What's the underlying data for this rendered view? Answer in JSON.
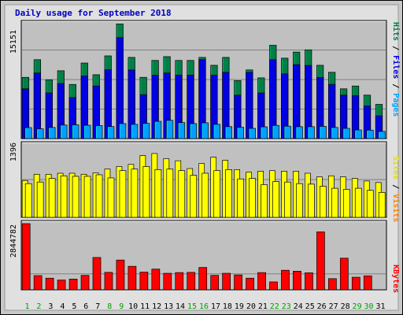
{
  "chart_data": [
    {
      "type": "bar",
      "title": "Daily usage for September 2018",
      "ylabel_top": "15151",
      "categories": [
        "1",
        "2",
        "3",
        "4",
        "5",
        "6",
        "7",
        "8",
        "9",
        "10",
        "11",
        "12",
        "13",
        "14",
        "15",
        "16",
        "17",
        "18",
        "19",
        "20",
        "21",
        "22",
        "23",
        "24",
        "25",
        "26",
        "27",
        "28",
        "29",
        "30",
        "31"
      ],
      "weekend_categories": [
        "1",
        "2",
        "8",
        "9",
        "15",
        "16",
        "22",
        "23",
        "29",
        "30"
      ],
      "legend": [
        "Pages",
        "Files",
        "Hits"
      ],
      "ylim": [
        0,
        15151
      ],
      "series": [
        {
          "name": "Hits",
          "color": "#007f46",
          "values": [
            8070,
            10400,
            7730,
            8940,
            7140,
            9960,
            8420,
            10900,
            15100,
            10700,
            8070,
            10300,
            10800,
            10300,
            10300,
            10700,
            9660,
            10700,
            7640,
            9050,
            8000,
            12300,
            10600,
            11400,
            11700,
            9660,
            8740,
            6560,
            6930,
            5730,
            4510
          ]
        },
        {
          "name": "Files",
          "color": "#0000e0",
          "values": [
            6560,
            8640,
            6020,
            7250,
            5400,
            8240,
            6930,
            9070,
            13300,
            9040,
            5790,
            8340,
            8640,
            8370,
            8370,
            10400,
            8340,
            8730,
            5720,
            8730,
            6020,
            10400,
            8530,
            9740,
            9640,
            8050,
            7140,
            5720,
            5640,
            4300,
            3000
          ]
        },
        {
          "name": "Pages",
          "color": "#00a0ff",
          "values": [
            1450,
            1290,
            1470,
            1790,
            1820,
            1760,
            1720,
            1590,
            1980,
            1880,
            2010,
            2280,
            2410,
            2110,
            1980,
            2080,
            1880,
            1580,
            1490,
            1350,
            1550,
            1740,
            1640,
            1570,
            1570,
            1620,
            1470,
            1350,
            1140,
            1120,
            950
          ]
        }
      ]
    },
    {
      "type": "bar",
      "ylabel_top": "1396",
      "legend": [
        "Sites",
        "Visits"
      ],
      "ylim": [
        0,
        1396
      ],
      "series": [
        {
          "name": "Visits",
          "color": "#ff8000",
          "values": [
            710,
            830,
            830,
            850,
            850,
            830,
            855,
            930,
            980,
            1020,
            1190,
            1230,
            1130,
            1090,
            940,
            1040,
            1160,
            1100,
            920,
            870,
            890,
            900,
            890,
            890,
            850,
            780,
            800,
            780,
            750,
            700,
            670
          ]
        },
        {
          "name": "Sites",
          "color": "#ffff00",
          "values": [
            650,
            680,
            750,
            800,
            790,
            790,
            820,
            760,
            900,
            930,
            980,
            920,
            930,
            900,
            810,
            850,
            900,
            920,
            740,
            750,
            630,
            690,
            680,
            650,
            640,
            600,
            560,
            540,
            560,
            520,
            480
          ]
        }
      ]
    },
    {
      "type": "bar",
      "ylabel_top": "2844782",
      "legend": [
        "KBytes"
      ],
      "ylim": [
        0,
        2844782
      ],
      "series": [
        {
          "name": "KBytes",
          "color": "#ff0000",
          "values": [
            2844782,
            610000,
            500000,
            420000,
            460000,
            620000,
            1390000,
            750000,
            1280000,
            1010000,
            760000,
            890000,
            710000,
            740000,
            750000,
            960000,
            620000,
            710000,
            640000,
            500000,
            740000,
            340000,
            840000,
            800000,
            730000,
            2490000,
            480000,
            1360000,
            540000,
            600000,
            0
          ]
        }
      ]
    }
  ]
}
